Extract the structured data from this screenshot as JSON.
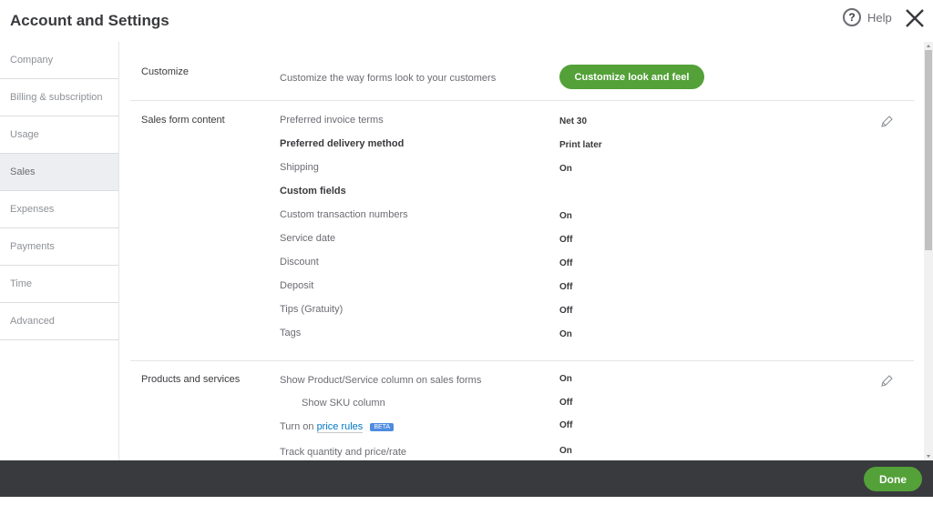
{
  "header": {
    "title": "Account and Settings",
    "help_label": "Help"
  },
  "sidebar": {
    "items": [
      {
        "label": "Company"
      },
      {
        "label": "Billing & subscription"
      },
      {
        "label": "Usage"
      },
      {
        "label": "Sales",
        "active": true
      },
      {
        "label": "Expenses"
      },
      {
        "label": "Payments"
      },
      {
        "label": "Time"
      },
      {
        "label": "Advanced"
      }
    ]
  },
  "customize": {
    "label": "Customize",
    "description": "Customize the way forms look to your customers",
    "button": "Customize look and feel"
  },
  "sales_form": {
    "label": "Sales form content",
    "rows": [
      {
        "label": "Preferred invoice terms",
        "value": "Net 30"
      },
      {
        "label": "Preferred delivery method",
        "value": "Print later",
        "bold": true
      },
      {
        "label": "Shipping",
        "value": "On"
      },
      {
        "label": "Custom fields",
        "value": "",
        "bold": true
      },
      {
        "label": "Custom transaction numbers",
        "value": "On"
      },
      {
        "label": "Service date",
        "value": "Off"
      },
      {
        "label": "Discount",
        "value": "Off"
      },
      {
        "label": "Deposit",
        "value": "Off"
      },
      {
        "label": "Tips (Gratuity)",
        "value": "Off"
      },
      {
        "label": "Tags",
        "value": "On"
      }
    ]
  },
  "products": {
    "label": "Products and services",
    "rows": [
      {
        "label": "Show Product/Service column on sales forms",
        "value": "On"
      },
      {
        "label": "Show SKU column",
        "value": "Off"
      },
      {
        "label_prefix": "Turn on ",
        "link": "price rules",
        "badge": "BETA",
        "value": "Off"
      },
      {
        "label": "Track quantity and price/rate",
        "value": "On"
      }
    ]
  },
  "footer": {
    "done": "Done"
  },
  "colors": {
    "accent": "#53a138",
    "footer": "#393a3d",
    "link": "#0077c5",
    "badge": "#4d8be0"
  }
}
